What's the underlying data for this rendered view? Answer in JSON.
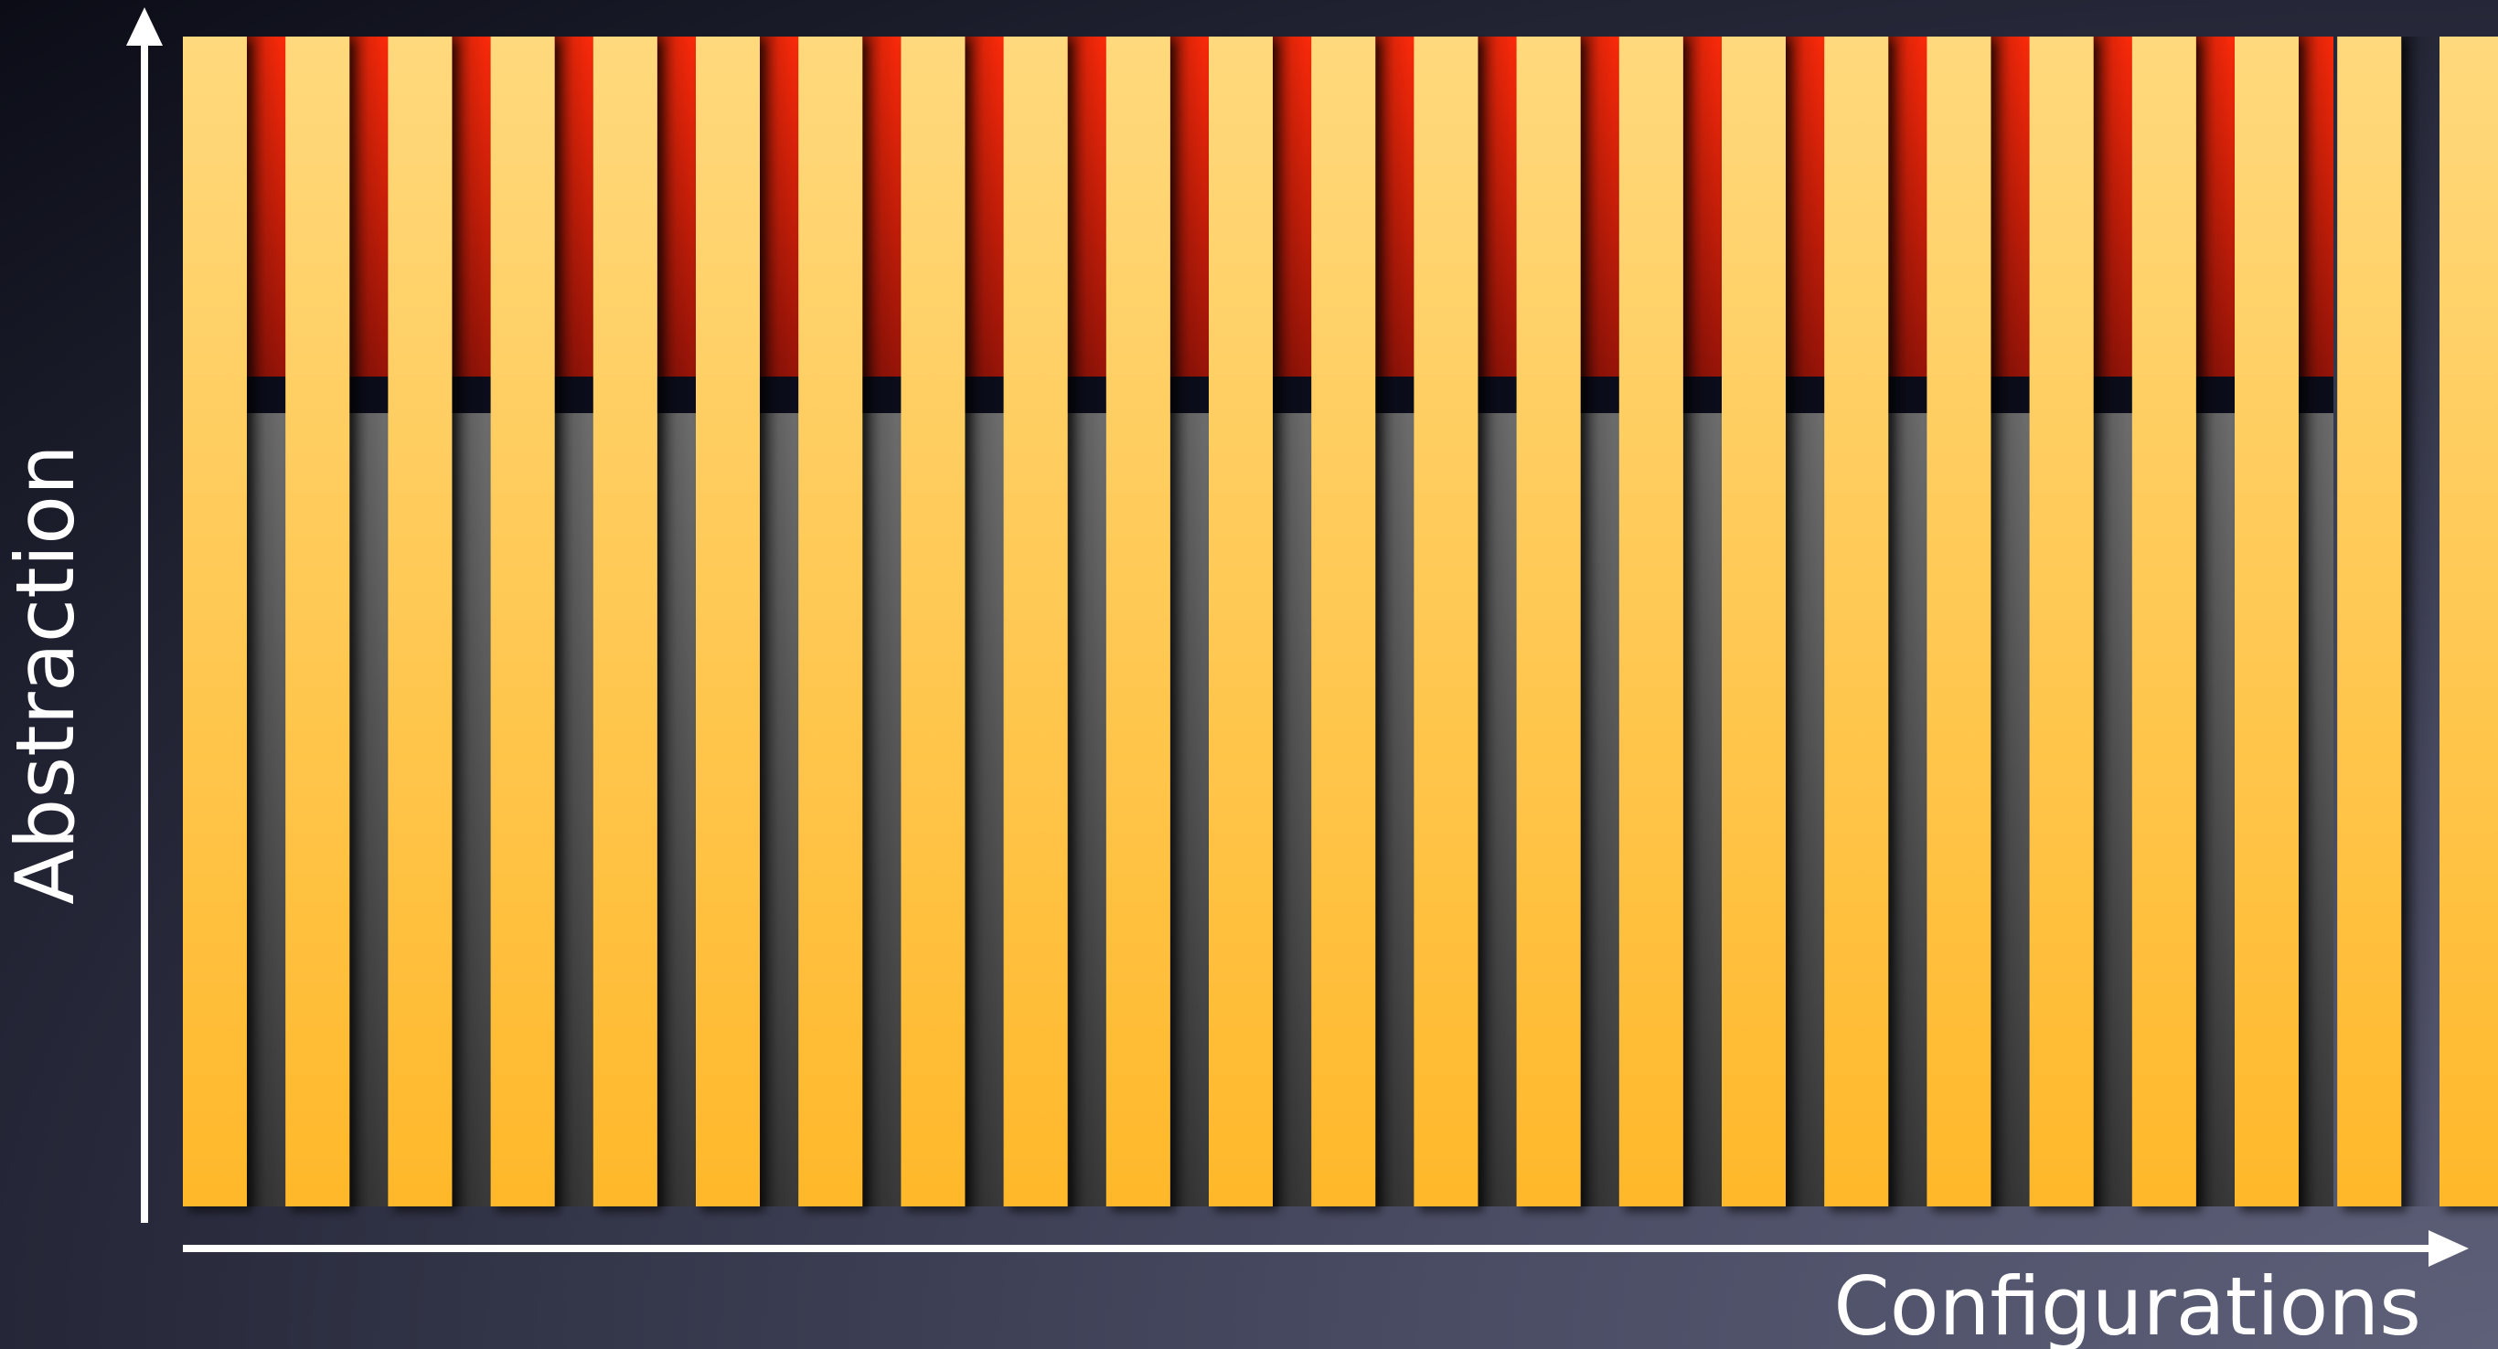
{
  "axes": {
    "y_label": "Abstraction",
    "x_label": "Configurations"
  },
  "layers": {
    "upper": {
      "name": "red-layer"
    },
    "lower": {
      "name": "gray-layer"
    }
  },
  "columns": {
    "count": 22,
    "partial_trailing_column": true
  },
  "colors": {
    "column_top": "#ffd97d",
    "column_bottom": "#ffb82a",
    "red_top": "#ff2a0a",
    "red_bottom": "#9a1408",
    "gray_top": "#6f6f6f",
    "gray_bottom": "#3a3a3a",
    "separator": "#0c0d1c",
    "axis": "#ffffff"
  }
}
